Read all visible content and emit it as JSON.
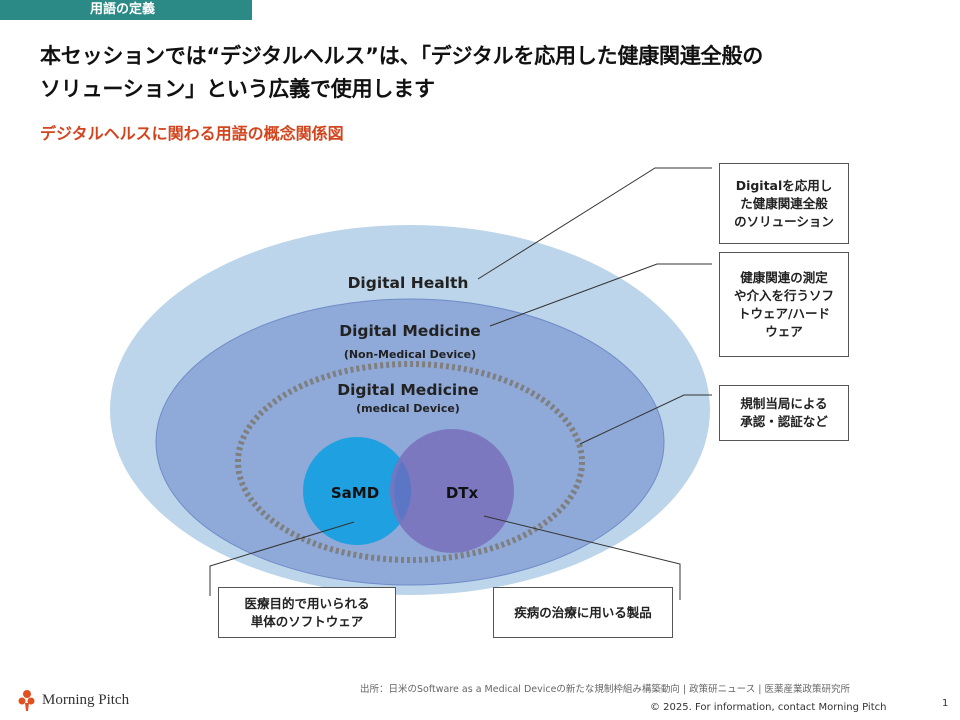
{
  "section_tab": "用語の定義",
  "headline": {
    "line1": "本セッションでは“デジタルヘルス”は、「デジタルを応用した健康関連全般の",
    "line2": "ソリューション」という広義で使用します"
  },
  "subhead": "デジタルヘルスに関わる用語の概念関係図",
  "diagram": {
    "outer_label": "Digital Health",
    "middle_label": "Digital Medicine",
    "middle_sub": "(Non-Medical Device)",
    "inner_label": "Digital Medicine",
    "inner_sub": "(medical Device)",
    "circle_left": "SaMD",
    "circle_right": "DTx",
    "colors": {
      "outer": "#bcd5ea",
      "middle": "#8fa9d8",
      "inner_dots": "#7f7f7f",
      "samd": "#1fa0e0",
      "dtx": "#7a72be"
    }
  },
  "callouts": {
    "digital_health": [
      "Digitalを応用し",
      "た健康関連全般",
      "のソリューション"
    ],
    "non_medical": [
      "健康関連の測定",
      "や介入を行うソフ",
      "トウェア/ハード",
      "ウェア"
    ],
    "medical_device": [
      "規制当局による",
      "承認・認証など"
    ],
    "samd": [
      "医療目的で用いられる",
      "単体のソフトウェア"
    ],
    "dtx": [
      "疾病の治療に用いる製品"
    ]
  },
  "source": "出所：日米のSoftware as a Medical Deviceの新たな規制枠組み構築動向 | 政策研ニュース | 医薬産業政策研究所",
  "footer": {
    "brand": "Morning Pitch",
    "copyright": "© 2025. For information, contact Morning Pitch",
    "page_number": "1"
  }
}
